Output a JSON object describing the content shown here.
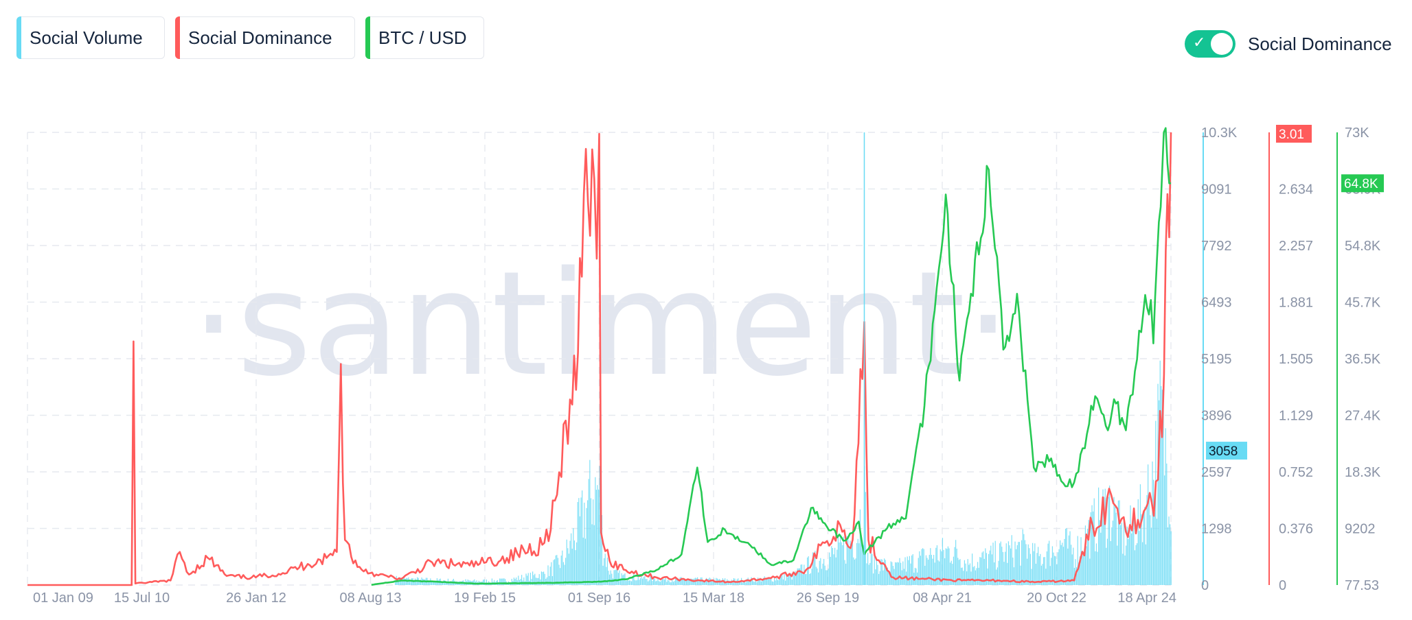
{
  "legend": {
    "items": [
      {
        "label": "Social Volume",
        "color": "#68dbf4"
      },
      {
        "label": "Social Dominance",
        "color": "#ff5b5b"
      },
      {
        "label": "BTC / USD",
        "color": "#26c953"
      }
    ],
    "toggle": {
      "label": "Social Dominance",
      "checked": true,
      "color": "#14c393"
    }
  },
  "watermark": "·santiment·",
  "chart_data": {
    "type": "line",
    "x_tick_labels": [
      "01 Jan 09",
      "15 Jul 10",
      "26 Jan 12",
      "08 Aug 13",
      "19 Feb 15",
      "01 Sep 16",
      "15 Mar 18",
      "26 Sep 19",
      "08 Apr 21",
      "20 Oct 22",
      "18 Apr 24"
    ],
    "x_range": [
      "2009-01-01",
      "2024-04-18"
    ],
    "grid": true,
    "axes": {
      "social_volume": {
        "ticks": [
          "10.3K",
          "9091",
          "7792",
          "6493",
          "5195",
          "3896",
          "2597",
          "1298",
          "0"
        ],
        "range": [
          0,
          10300
        ],
        "current_value": "3058",
        "color": "#68dbf4"
      },
      "social_dominance": {
        "ticks": [
          "3.01",
          "2.634",
          "2.257",
          "1.881",
          "1.505",
          "1.129",
          "0.752",
          "0.376",
          "0"
        ],
        "range": [
          0,
          3.01
        ],
        "current_value": "3.01",
        "color": "#ff5b5b"
      },
      "btc_usd": {
        "ticks": [
          "73K",
          "63.9K",
          "54.8K",
          "45.7K",
          "36.5K",
          "27.4K",
          "18.3K",
          "9202",
          "77.53"
        ],
        "range": [
          77.53,
          73000
        ],
        "current_value": "64.8K",
        "color": "#26c953"
      }
    },
    "series": [
      {
        "name": "Social Volume",
        "type": "bar",
        "axis": "social_volume",
        "points": [
          [
            "2013-12-01",
            200
          ],
          [
            "2014-06-01",
            150
          ],
          [
            "2015-01-01",
            120
          ],
          [
            "2015-06-01",
            150
          ],
          [
            "2015-12-01",
            350
          ],
          [
            "2016-03-01",
            800
          ],
          [
            "2016-05-15",
            1800
          ],
          [
            "2016-07-15",
            2800
          ],
          [
            "2016-08-25",
            3000
          ],
          [
            "2016-09-10",
            1200
          ],
          [
            "2016-10-15",
            400
          ],
          [
            "2017-01-01",
            250
          ],
          [
            "2017-07-01",
            180
          ],
          [
            "2018-01-01",
            160
          ],
          [
            "2018-07-01",
            150
          ],
          [
            "2019-01-01",
            200
          ],
          [
            "2019-04-01",
            300
          ],
          [
            "2019-07-01",
            700
          ],
          [
            "2019-11-01",
            1000
          ],
          [
            "2020-02-01",
            1500
          ],
          [
            "2020-03-12",
            2800
          ],
          [
            "2020-03-25",
            800
          ],
          [
            "2020-08-01",
            500
          ],
          [
            "2021-01-15",
            900
          ],
          [
            "2021-05-15",
            1100
          ],
          [
            "2021-08-01",
            700
          ],
          [
            "2021-12-01",
            900
          ],
          [
            "2022-05-10",
            1200
          ],
          [
            "2022-07-01",
            800
          ],
          [
            "2022-11-10",
            1300
          ],
          [
            "2023-01-01",
            1000
          ],
          [
            "2023-04-01",
            1800
          ],
          [
            "2023-06-20",
            2500
          ],
          [
            "2023-09-01",
            1400
          ],
          [
            "2023-12-01",
            2200
          ],
          [
            "2024-02-01",
            3800
          ],
          [
            "2024-03-01",
            5400
          ],
          [
            "2024-03-20",
            4200
          ],
          [
            "2024-04-18",
            3058
          ]
        ]
      },
      {
        "name": "Social Dominance",
        "type": "line",
        "axis": "social_dominance",
        "points": [
          [
            "2009-01-01",
            0.0
          ],
          [
            "2010-05-25",
            0.0
          ],
          [
            "2010-06-03",
            1.62
          ],
          [
            "2010-06-12",
            0.01
          ],
          [
            "2010-12-01",
            0.03
          ],
          [
            "2011-01-15",
            0.22
          ],
          [
            "2011-03-01",
            0.07
          ],
          [
            "2011-06-01",
            0.18
          ],
          [
            "2011-09-01",
            0.06
          ],
          [
            "2012-01-01",
            0.05
          ],
          [
            "2012-06-01",
            0.08
          ],
          [
            "2012-10-01",
            0.14
          ],
          [
            "2013-01-01",
            0.18
          ],
          [
            "2013-02-20",
            0.22
          ],
          [
            "2013-03-12",
            1.47
          ],
          [
            "2013-04-01",
            0.3
          ],
          [
            "2013-06-01",
            0.12
          ],
          [
            "2013-09-01",
            0.07
          ],
          [
            "2014-01-01",
            0.04
          ],
          [
            "2014-06-01",
            0.15
          ],
          [
            "2014-12-01",
            0.13
          ],
          [
            "2015-06-01",
            0.18
          ],
          [
            "2015-12-01",
            0.28
          ],
          [
            "2016-02-01",
            0.6
          ],
          [
            "2016-04-15",
            1.2
          ],
          [
            "2016-06-01",
            2.05
          ],
          [
            "2016-07-01",
            2.55
          ],
          [
            "2016-08-01",
            2.7
          ],
          [
            "2016-08-25",
            3.0
          ],
          [
            "2016-09-03",
            0.35
          ],
          [
            "2016-10-15",
            0.16
          ],
          [
            "2017-01-01",
            0.1
          ],
          [
            "2017-06-01",
            0.05
          ],
          [
            "2018-01-01",
            0.03
          ],
          [
            "2018-06-01",
            0.02
          ],
          [
            "2019-01-01",
            0.05
          ],
          [
            "2019-06-01",
            0.1
          ],
          [
            "2019-09-01",
            0.28
          ],
          [
            "2019-11-15",
            0.4
          ],
          [
            "2020-01-15",
            0.3
          ],
          [
            "2020-03-12",
            1.75
          ],
          [
            "2020-04-01",
            0.3
          ],
          [
            "2020-08-01",
            0.05
          ],
          [
            "2021-01-01",
            0.04
          ],
          [
            "2021-07-01",
            0.03
          ],
          [
            "2022-01-01",
            0.03
          ],
          [
            "2022-07-01",
            0.02
          ],
          [
            "2023-01-01",
            0.03
          ],
          [
            "2023-04-01",
            0.4
          ],
          [
            "2023-07-01",
            0.6
          ],
          [
            "2023-10-01",
            0.4
          ],
          [
            "2024-01-15",
            0.55
          ],
          [
            "2024-02-15",
            0.7
          ],
          [
            "2024-03-15",
            1.4
          ],
          [
            "2024-04-01",
            2.6
          ],
          [
            "2024-04-18",
            3.01
          ]
        ]
      },
      {
        "name": "BTC / USD",
        "type": "line",
        "axis": "btc_usd",
        "points": [
          [
            "2013-08-08",
            110
          ],
          [
            "2014-01-01",
            800
          ],
          [
            "2014-07-01",
            600
          ],
          [
            "2015-01-01",
            300
          ],
          [
            "2016-01-01",
            430
          ],
          [
            "2016-09-01",
            610
          ],
          [
            "2017-01-01",
            1000
          ],
          [
            "2017-06-01",
            2500
          ],
          [
            "2017-10-01",
            5000
          ],
          [
            "2017-12-17",
            19000
          ],
          [
            "2018-02-06",
            7000
          ],
          [
            "2018-05-01",
            9000
          ],
          [
            "2018-09-01",
            6500
          ],
          [
            "2018-12-15",
            3300
          ],
          [
            "2019-04-01",
            4100
          ],
          [
            "2019-06-26",
            12500
          ],
          [
            "2019-09-01",
            10000
          ],
          [
            "2019-12-01",
            7200
          ],
          [
            "2020-02-14",
            10300
          ],
          [
            "2020-03-12",
            5000
          ],
          [
            "2020-07-01",
            9200
          ],
          [
            "2020-10-01",
            10800
          ],
          [
            "2020-12-31",
            29000
          ],
          [
            "2021-03-01",
            48000
          ],
          [
            "2021-04-14",
            63000
          ],
          [
            "2021-06-20",
            33000
          ],
          [
            "2021-08-15",
            47000
          ],
          [
            "2021-11-10",
            67000
          ],
          [
            "2022-01-20",
            38000
          ],
          [
            "2022-03-28",
            47000
          ],
          [
            "2022-06-18",
            19000
          ],
          [
            "2022-09-01",
            20000
          ],
          [
            "2022-11-09",
            16500
          ],
          [
            "2023-01-01",
            16600
          ],
          [
            "2023-03-15",
            26000
          ],
          [
            "2023-04-14",
            30500
          ],
          [
            "2023-06-15",
            25000
          ],
          [
            "2023-07-15",
            30000
          ],
          [
            "2023-09-11",
            25000
          ],
          [
            "2023-10-25",
            34500
          ],
          [
            "2023-12-05",
            44000
          ],
          [
            "2024-01-11",
            46000
          ],
          [
            "2024-01-23",
            39000
          ],
          [
            "2024-02-28",
            61000
          ],
          [
            "2024-03-14",
            73000
          ],
          [
            "2024-04-01",
            68000
          ],
          [
            "2024-04-18",
            64800
          ]
        ]
      }
    ]
  }
}
